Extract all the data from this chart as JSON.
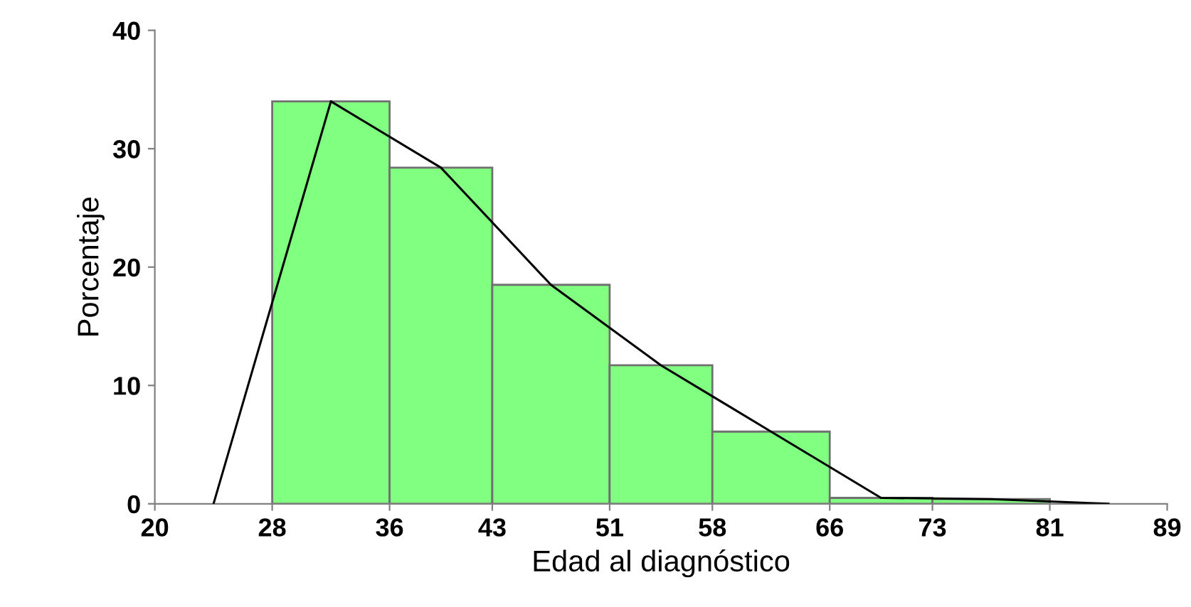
{
  "chart_data": {
    "type": "histogram",
    "xlabel": "Edad al diagnóstico",
    "ylabel": "Porcentaje",
    "bins": [
      28,
      36,
      43,
      51,
      58,
      66,
      73,
      81
    ],
    "values": [
      34,
      28.4,
      18.5,
      11.7,
      6.1,
      0.5,
      0.4
    ],
    "color": "#80ff80",
    "series": [
      {
        "type": "line",
        "color": "#000000",
        "x": [
          24,
          32,
          39.5,
          47,
          54.5,
          62,
          69.5,
          77,
          85
        ],
        "values": [
          0,
          34,
          28.4,
          18.5,
          11.7,
          6.1,
          0.5,
          0.4,
          0
        ]
      }
    ],
    "xlim": [
      20,
      89
    ],
    "ylim": [
      0,
      40
    ],
    "xticks": [
      20,
      28,
      36,
      43,
      51,
      58,
      66,
      73,
      81,
      89
    ],
    "yticks": [
      0,
      10,
      20,
      30,
      40
    ],
    "grid": false,
    "legend": false,
    "marker": "none",
    "line_style": "solid"
  }
}
